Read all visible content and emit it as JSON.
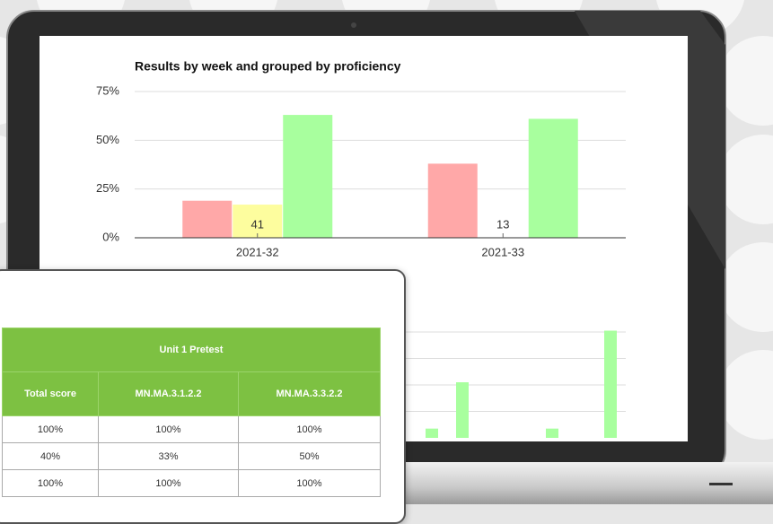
{
  "chart_data": [
    {
      "type": "bar",
      "title": "Results by week and grouped by proficiency",
      "categories": [
        "2021-32",
        "2021-33"
      ],
      "series": [
        {
          "color": "#ffa8a8",
          "values": [
            19,
            38
          ]
        },
        {
          "color": "#fdfd9e",
          "values": [
            17,
            0
          ]
        },
        {
          "color": "#a8ff9e",
          "values": [
            63,
            61
          ]
        }
      ],
      "bar_labels": [
        {
          "category": "2021-32",
          "text": "41"
        },
        {
          "category": "2021-33",
          "text": "13"
        }
      ],
      "ylim": [
        0,
        75
      ],
      "yticks": [
        {
          "value": 0,
          "label": "0%"
        },
        {
          "value": 25,
          "label": "25%"
        },
        {
          "value": 50,
          "label": "50%"
        },
        {
          "value": 75,
          "label": "75%"
        }
      ],
      "grid": true
    },
    {
      "type": "bar",
      "categories": [
        null,
        null,
        null,
        null
      ],
      "values": [
        0.35,
        2.1,
        0.35,
        4.05
      ],
      "color": "#a8ff9e",
      "ylim": [
        0,
        4
      ],
      "grid": true
    }
  ],
  "table": {
    "group_header": "Unit 1 Pretest",
    "columns": [
      "Total score",
      "MN.MA.3.1.2.2",
      "MN.MA.3.3.2.2"
    ],
    "rows": [
      [
        "100%",
        "100%",
        "100%"
      ],
      [
        "40%",
        "33%",
        "50%"
      ],
      [
        "100%",
        "100%",
        "100%"
      ]
    ]
  }
}
